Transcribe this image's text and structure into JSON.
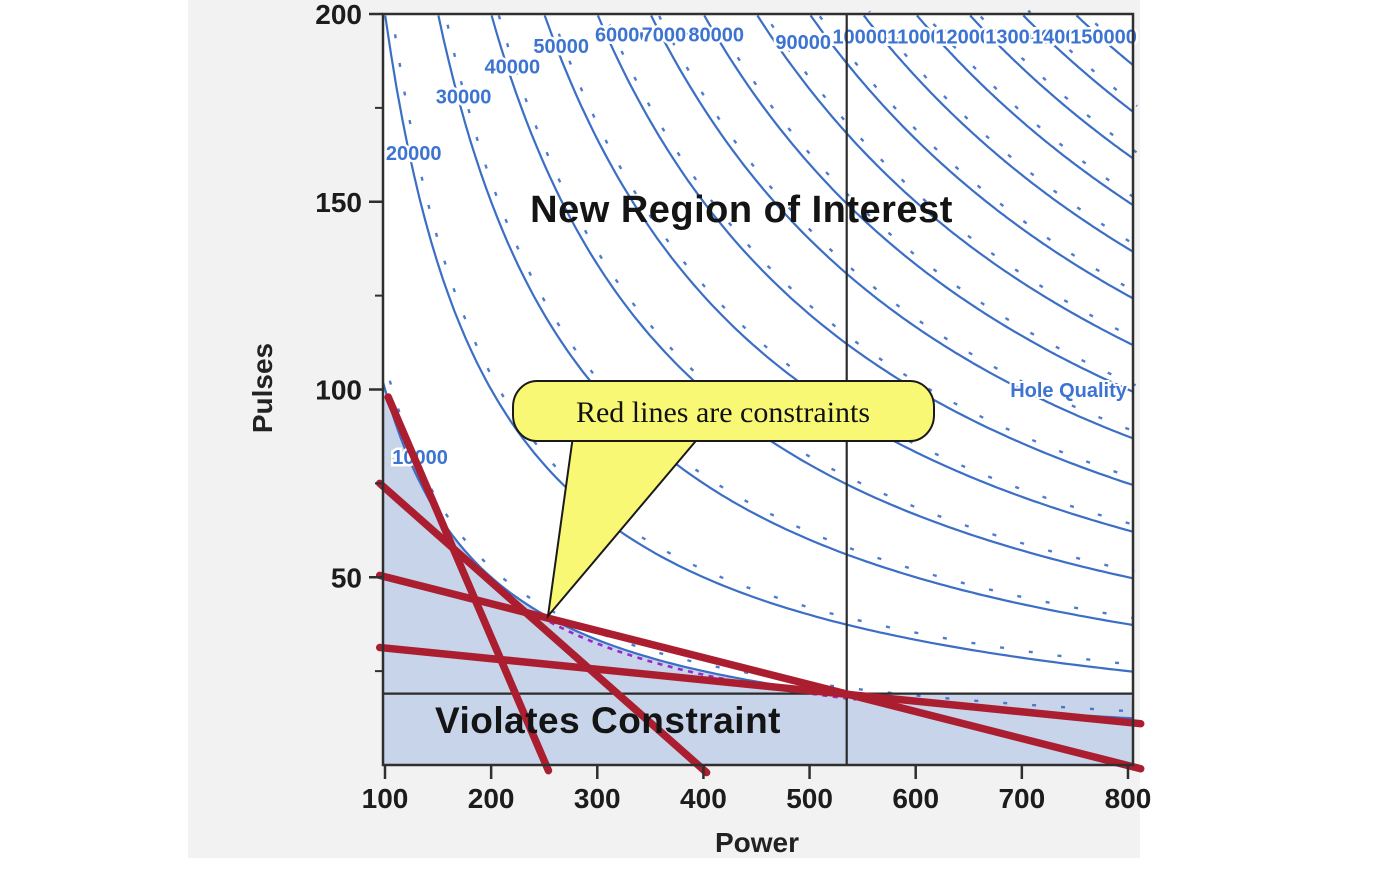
{
  "chart_data": {
    "type": "contour",
    "xlabel": "Power",
    "ylabel": "Pulses",
    "xlim": [
      98,
      805
    ],
    "ylim": [
      0,
      200
    ],
    "xticks": [
      100,
      200,
      300,
      400,
      500,
      600,
      700,
      800
    ],
    "yticks": [
      50,
      100,
      150,
      200
    ],
    "yticks_minor": [
      25,
      75,
      125,
      175
    ],
    "grid": false,
    "response": "Hole Quality",
    "contour_function": "value = Power * Pulses",
    "contour_levels": [
      {
        "value": 10000,
        "label": "10000",
        "label_at": {
          "power": 133,
          "pulses": 82
        }
      },
      {
        "value": 20000,
        "label": "20000",
        "label_at": {
          "power": 127,
          "pulses": 163
        }
      },
      {
        "value": 30000,
        "label": "30000",
        "label_at": {
          "power": 174,
          "pulses": 178
        }
      },
      {
        "value": 40000,
        "label": "40000",
        "label_at": {
          "power": 220,
          "pulses": 186
        }
      },
      {
        "value": 50000,
        "label": "50000",
        "label_at": {
          "power": 266,
          "pulses": 191.5
        }
      },
      {
        "value": 60000,
        "label": "60000",
        "label_at": {
          "power": 324,
          "pulses": 194.5
        }
      },
      {
        "value": 70000,
        "label": "70000",
        "label_at": {
          "power": 368,
          "pulses": 194.5
        }
      },
      {
        "value": 80000,
        "label": "80000",
        "label_at": {
          "power": 412,
          "pulses": 194.5
        }
      },
      {
        "value": 90000,
        "label": "90000",
        "label_at": {
          "power": 494,
          "pulses": 192.5
        }
      },
      {
        "value": 100000,
        "label": "100000",
        "label_at": {
          "power": 553,
          "pulses": 194
        }
      },
      {
        "value": 110000,
        "label": "110000",
        "label_at": {
          "power": 604,
          "pulses": 194
        }
      },
      {
        "value": 120000,
        "label": "120000",
        "label_at": {
          "power": 650,
          "pulses": 194
        }
      },
      {
        "value": 130000,
        "label": "130000",
        "label_at": {
          "power": 697,
          "pulses": 194
        }
      },
      {
        "value": 140000,
        "label": "140000",
        "label_at": {
          "power": 741,
          "pulses": 194
        }
      },
      {
        "value": 150000,
        "label": "150000",
        "label_at": {
          "power": 777,
          "pulses": 194
        }
      }
    ],
    "response_label": {
      "text": "Hole Quality",
      "power": 744,
      "pulses": 98
    },
    "crosshair": {
      "power": 535,
      "pulses": 19
    },
    "constraints": [
      {
        "name": "constraint-1",
        "from": {
          "power": 103,
          "pulses": 98
        },
        "to": {
          "power": 254,
          "pulses": -1.5
        }
      },
      {
        "name": "constraint-2",
        "from": {
          "power": 95,
          "pulses": 75
        },
        "to": {
          "power": 403,
          "pulses": -2
        }
      },
      {
        "name": "constraint-3",
        "from": {
          "power": 95,
          "pulses": 50.5
        },
        "to": {
          "power": 812,
          "pulses": -1
        }
      },
      {
        "name": "constraint-4",
        "from": {
          "power": 95,
          "pulses": 31.3
        },
        "to": {
          "power": 812,
          "pulses": 11
        }
      }
    ],
    "violation_region": {
      "boundary_level": 10000,
      "left_top_pulses": 98,
      "right_pulses": 18.8
    },
    "annotations": {
      "new_region": {
        "text": "New Region of Interest",
        "power": 433,
        "pulses": 148
      },
      "violates": {
        "text": "Violates Constraint",
        "power": 310,
        "pulses": 11.5
      }
    },
    "callout": {
      "text": "Red lines are constraints",
      "points_to": {
        "power": 253,
        "pulses": 39.5
      }
    },
    "colors": {
      "contour": "#3B6EC5",
      "contour_label": "#3D74D1",
      "constraint": "#AB1E30",
      "violation_fill": "#C7D4E9",
      "purple_dash": "#9B27CE",
      "crosshair": "#2B2B2B",
      "callout_fill": "#F9F874",
      "panel": "#F2F2F2",
      "plot_bg": "#FFFFFF",
      "axis": "#2F2F2F",
      "tick_label": "#1C1C1C"
    }
  }
}
